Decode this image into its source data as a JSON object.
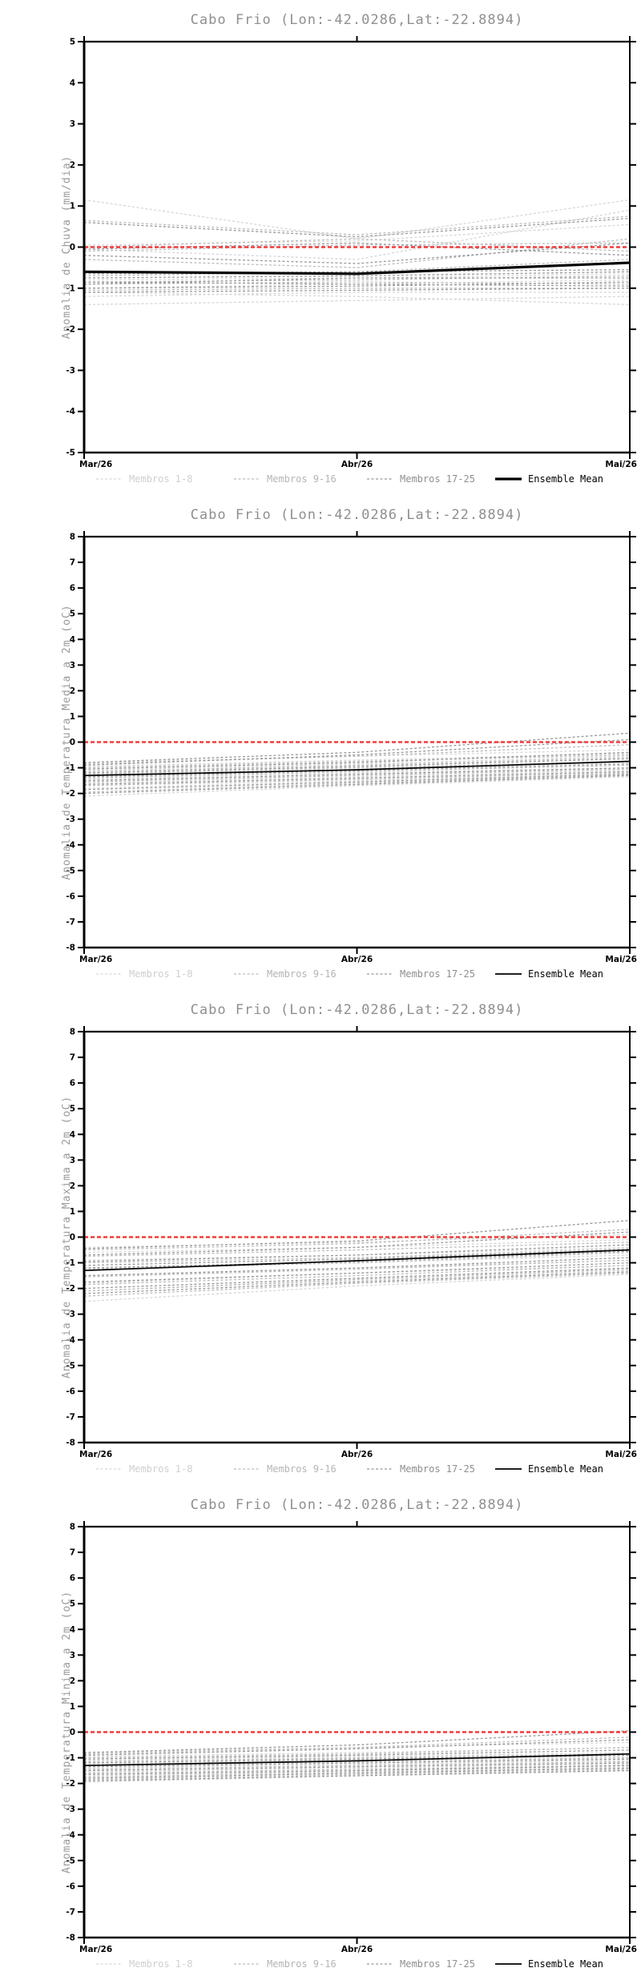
{
  "page": {
    "background": "#ffffff",
    "title": "Cabo Frio (Lon:-42.0286,Lat:-22.8894)"
  },
  "colors": {
    "title_gray": "#8f8f8f",
    "axis_label_gray": "#9a9a9a",
    "axis_black": "#000000",
    "zero_line_red": "#f23b3b",
    "members_1_8": "#d6d6d6",
    "members_9_16": "#bcbcbc",
    "members_17_25": "#999999",
    "ensemble_mean": "#000000"
  },
  "legend": {
    "items": [
      {
        "label": "Membros 1-8",
        "line_color": "#d6d6d6",
        "text_color": "#cfcfcf",
        "style": "dashed"
      },
      {
        "label": "Membros 9-16",
        "line_color": "#bcbcbc",
        "text_color": "#b5b5b5",
        "style": "dashed"
      },
      {
        "label": "Membros 17-25",
        "line_color": "#999999",
        "text_color": "#8f8f8f",
        "style": "dashed"
      },
      {
        "label": "Ensemble Mean",
        "line_color": "#000000",
        "text_color": "#000000",
        "style": "solid"
      }
    ]
  },
  "chart_data": [
    {
      "type": "line",
      "title": "Cabo Frio (Lon:-42.0286,Lat:-22.8894)",
      "ylabel": "Anomalia de Chuva (mm/dia)",
      "xlabel": "",
      "x_categories": [
        "Mar/26",
        "Abr/26",
        "Mai/26"
      ],
      "ylim": [
        -5,
        5
      ],
      "ytick_step": 1,
      "grid": false,
      "legend_position": "bottom",
      "zero_line": {
        "value": 0,
        "color": "#f23b3b",
        "style": "dashed"
      },
      "mean_line_width": 3.2,
      "series": [
        {
          "name": "Membros 1-8",
          "color": "#d6d6d6",
          "style": "dashed",
          "lines": [
            [
              1.15,
              0.2,
              1.15
            ],
            [
              0.05,
              0.15,
              0.55
            ],
            [
              -0.05,
              -0.3,
              0.9
            ],
            [
              -0.8,
              -0.75,
              -0.65
            ],
            [
              -1.0,
              -0.9,
              -0.8
            ],
            [
              -1.2,
              -1.1,
              -1.1
            ],
            [
              -1.4,
              -1.3,
              -1.2
            ],
            [
              -1.1,
              -1.2,
              -1.4
            ]
          ]
        },
        {
          "name": "Membros 9-16",
          "color": "#bcbcbc",
          "style": "dashed",
          "lines": [
            [
              0.65,
              0.3,
              0.75
            ],
            [
              0.0,
              0.2,
              -0.1
            ],
            [
              -0.1,
              0.05,
              0.1
            ],
            [
              -0.7,
              -0.6,
              -0.3
            ],
            [
              -0.85,
              -0.8,
              -0.7
            ],
            [
              -0.9,
              -0.85,
              -0.9
            ],
            [
              -1.05,
              -1.0,
              -1.0
            ],
            [
              -0.3,
              -0.5,
              0.2
            ]
          ]
        },
        {
          "name": "Membros 17-25",
          "color": "#999999",
          "style": "dashed",
          "lines": [
            [
              0.6,
              0.25,
              0.7
            ],
            [
              -0.05,
              0.1,
              -0.2
            ],
            [
              -0.65,
              -0.6,
              -0.55
            ],
            [
              -0.75,
              -0.7,
              -0.6
            ],
            [
              -0.9,
              -0.75,
              -0.75
            ],
            [
              -1.0,
              -0.95,
              -0.85
            ],
            [
              -1.1,
              -1.05,
              -1.0
            ],
            [
              -0.85,
              -0.9,
              -0.95
            ],
            [
              -0.2,
              -0.4,
              0.1
            ]
          ]
        },
        {
          "name": "Ensemble Mean",
          "color": "#000000",
          "style": "solid",
          "lines": [
            [
              -0.6,
              -0.65,
              -0.38
            ]
          ]
        }
      ]
    },
    {
      "type": "line",
      "title": "Cabo Frio (Lon:-42.0286,Lat:-22.8894)",
      "ylabel": "Anomalia de Temperatura Media a 2m (oC)",
      "xlabel": "",
      "x_categories": [
        "Mar/26",
        "Abr/26",
        "Mai/26"
      ],
      "ylim": [
        -8,
        8
      ],
      "ytick_step": 1,
      "grid": false,
      "legend_position": "bottom",
      "zero_line": {
        "value": 0,
        "color": "#f23b3b",
        "style": "dashed"
      },
      "mean_line_width": 1.7,
      "series": [
        {
          "name": "Membros 1-8",
          "color": "#d6d6d6",
          "style": "dashed",
          "lines": [
            [
              -0.8,
              -0.55,
              -0.3
            ],
            [
              -0.95,
              -0.7,
              -0.45
            ],
            [
              -1.1,
              -0.85,
              -0.55
            ],
            [
              -1.3,
              -1.05,
              -0.8
            ],
            [
              -1.45,
              -1.2,
              -1.0
            ],
            [
              -1.6,
              -1.35,
              -1.1
            ],
            [
              -1.8,
              -1.5,
              -1.25
            ],
            [
              -2.1,
              -1.7,
              -1.35
            ]
          ]
        },
        {
          "name": "Membros 9-16",
          "color": "#bcbcbc",
          "style": "dashed",
          "lines": [
            [
              -0.85,
              -0.55,
              -0.1
            ],
            [
              -1.0,
              -0.75,
              -0.5
            ],
            [
              -1.15,
              -0.9,
              -0.6
            ],
            [
              -1.25,
              -1.0,
              -0.75
            ],
            [
              -1.4,
              -1.15,
              -0.9
            ],
            [
              -1.55,
              -1.3,
              -1.05
            ],
            [
              -1.7,
              -1.45,
              -1.2
            ],
            [
              -1.95,
              -1.6,
              -1.3
            ]
          ]
        },
        {
          "name": "Membros 17-25",
          "color": "#999999",
          "style": "dashed",
          "lines": [
            [
              -0.8,
              -0.4,
              0.35
            ],
            [
              -0.9,
              -0.5,
              0.1
            ],
            [
              -1.05,
              -0.8,
              -0.4
            ],
            [
              -1.2,
              -0.95,
              -0.65
            ],
            [
              -1.35,
              -1.1,
              -0.85
            ],
            [
              -1.5,
              -1.25,
              -1.0
            ],
            [
              -1.65,
              -1.4,
              -1.15
            ],
            [
              -1.85,
              -1.55,
              -1.25
            ],
            [
              -2.0,
              -1.65,
              -1.3
            ]
          ]
        },
        {
          "name": "Ensemble Mean",
          "color": "#000000",
          "style": "solid",
          "lines": [
            [
              -1.3,
              -1.08,
              -0.75
            ]
          ]
        }
      ]
    },
    {
      "type": "line",
      "title": "Cabo Frio (Lon:-42.0286,Lat:-22.8894)",
      "ylabel": "Anomalia de Temperatura Maxima a 2m (oC)",
      "xlabel": "",
      "x_categories": [
        "Mar/26",
        "Abr/26",
        "Mai/26"
      ],
      "ylim": [
        -8,
        8
      ],
      "ytick_step": 1,
      "grid": false,
      "legend_position": "bottom",
      "zero_line": {
        "value": 0,
        "color": "#f23b3b",
        "style": "dashed"
      },
      "mean_line_width": 1.7,
      "series": [
        {
          "name": "Membros 1-8",
          "color": "#d6d6d6",
          "style": "dashed",
          "lines": [
            [
              -0.4,
              -0.2,
              0.1
            ],
            [
              -0.6,
              -0.4,
              -0.1
            ],
            [
              -0.9,
              -0.7,
              -0.4
            ],
            [
              -1.2,
              -1.0,
              -0.7
            ],
            [
              -1.5,
              -1.2,
              -0.9
            ],
            [
              -1.8,
              -1.4,
              -1.1
            ],
            [
              -2.1,
              -1.7,
              -1.3
            ],
            [
              -2.5,
              -1.9,
              -1.45
            ]
          ]
        },
        {
          "name": "Membros 9-16",
          "color": "#bcbcbc",
          "style": "dashed",
          "lines": [
            [
              -0.5,
              -0.25,
              0.3
            ],
            [
              -0.75,
              -0.5,
              -0.2
            ],
            [
              -1.0,
              -0.8,
              -0.45
            ],
            [
              -1.25,
              -1.0,
              -0.6
            ],
            [
              -1.55,
              -1.25,
              -0.9
            ],
            [
              -1.85,
              -1.5,
              -1.1
            ],
            [
              -2.1,
              -1.65,
              -1.25
            ],
            [
              -2.3,
              -1.8,
              -1.4
            ]
          ]
        },
        {
          "name": "Membros 17-25",
          "color": "#999999",
          "style": "dashed",
          "lines": [
            [
              -0.45,
              -0.15,
              0.65
            ],
            [
              -0.7,
              -0.4,
              0.2
            ],
            [
              -0.95,
              -0.7,
              -0.3
            ],
            [
              -1.2,
              -0.95,
              -0.55
            ],
            [
              -1.5,
              -1.2,
              -0.8
            ],
            [
              -1.75,
              -1.4,
              -1.0
            ],
            [
              -2.0,
              -1.6,
              -1.2
            ],
            [
              -2.2,
              -1.75,
              -1.35
            ],
            [
              -1.1,
              -0.85,
              -0.5
            ]
          ]
        },
        {
          "name": "Ensemble Mean",
          "color": "#000000",
          "style": "solid",
          "lines": [
            [
              -1.3,
              -0.92,
              -0.5
            ]
          ]
        }
      ]
    },
    {
      "type": "line",
      "title": "Cabo Frio (Lon:-42.0286,Lat:-22.8894)",
      "ylabel": "Anomalia de Temperatura Minima a 2m (oC)",
      "xlabel": "",
      "x_categories": [
        "Mar/26",
        "Abr/26",
        "Mai/26"
      ],
      "ylim": [
        -8,
        8
      ],
      "ytick_step": 1,
      "grid": false,
      "legend_position": "bottom",
      "zero_line": {
        "value": 0,
        "color": "#f23b3b",
        "style": "dashed"
      },
      "mean_line_width": 1.7,
      "series": [
        {
          "name": "Membros 1-8",
          "color": "#d6d6d6",
          "style": "dashed",
          "lines": [
            [
              -0.8,
              -0.6,
              -0.4
            ],
            [
              -0.95,
              -0.8,
              -0.6
            ],
            [
              -1.1,
              -0.95,
              -0.8
            ],
            [
              -1.25,
              -1.1,
              -0.95
            ],
            [
              -1.4,
              -1.25,
              -1.1
            ],
            [
              -1.55,
              -1.4,
              -1.25
            ],
            [
              -1.7,
              -1.5,
              -1.35
            ],
            [
              -1.95,
              -1.7,
              -1.5
            ]
          ]
        },
        {
          "name": "Membros 9-16",
          "color": "#bcbcbc",
          "style": "dashed",
          "lines": [
            [
              -0.85,
              -0.6,
              -0.2
            ],
            [
              -1.0,
              -0.85,
              -0.6
            ],
            [
              -1.15,
              -1.0,
              -0.85
            ],
            [
              -1.3,
              -1.15,
              -1.0
            ],
            [
              -1.45,
              -1.3,
              -1.15
            ],
            [
              -1.6,
              -1.45,
              -1.3
            ],
            [
              -1.75,
              -1.55,
              -1.4
            ],
            [
              -1.85,
              -1.65,
              -1.45
            ]
          ]
        },
        {
          "name": "Membros 17-25",
          "color": "#999999",
          "style": "dashed",
          "lines": [
            [
              -0.8,
              -0.5,
              0.05
            ],
            [
              -0.9,
              -0.65,
              -0.3
            ],
            [
              -1.05,
              -0.9,
              -0.7
            ],
            [
              -1.2,
              -1.05,
              -0.9
            ],
            [
              -1.35,
              -1.2,
              -1.05
            ],
            [
              -1.5,
              -1.35,
              -1.2
            ],
            [
              -1.65,
              -1.5,
              -1.3
            ],
            [
              -1.8,
              -1.6,
              -1.4
            ],
            [
              -1.9,
              -1.7,
              -1.5
            ]
          ]
        },
        {
          "name": "Ensemble Mean",
          "color": "#000000",
          "style": "solid",
          "lines": [
            [
              -1.3,
              -1.12,
              -0.85
            ]
          ]
        }
      ]
    }
  ]
}
